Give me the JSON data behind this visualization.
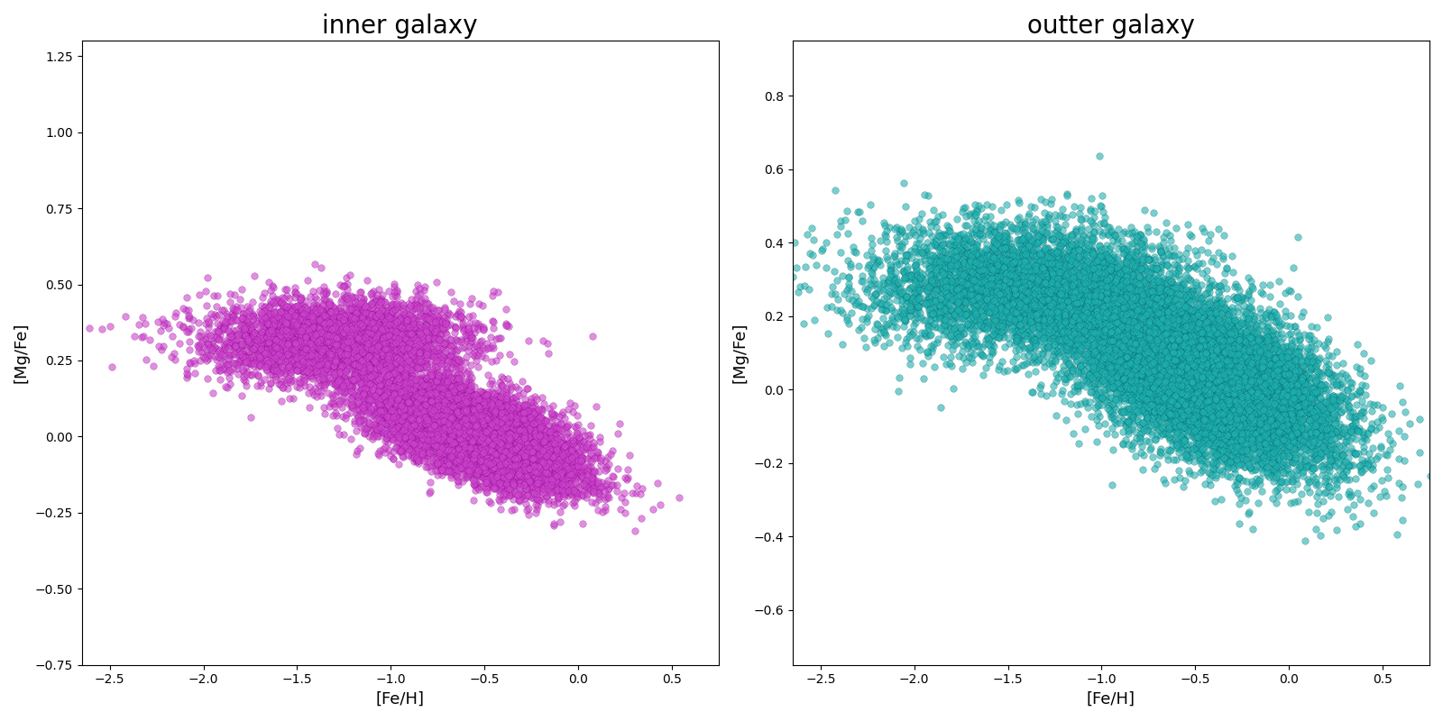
{
  "left_title": "inner galaxy",
  "right_title": "outter galaxy",
  "xlabel": "[Fe/H]",
  "ylabel": "[Mg/Fe]",
  "left_color": "#CC44CC",
  "left_edge_color": "#880088",
  "right_color": "#20B0B0",
  "right_edge_color": "#006060",
  "marker_size": 30,
  "marker_alpha": 0.6,
  "left_xlim": [
    -2.65,
    0.75
  ],
  "left_ylim": [
    -0.75,
    1.3
  ],
  "right_xlim": [
    -2.65,
    0.75
  ],
  "right_ylim": [
    -0.75,
    0.95
  ],
  "title_fontsize": 20,
  "label_fontsize": 13,
  "figsize": [
    16,
    8
  ]
}
